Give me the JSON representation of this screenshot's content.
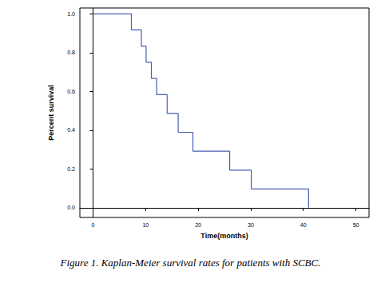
{
  "chart_data": {
    "type": "step",
    "title": "Figure 1. Kaplan-Meier survival rates for patients with SCBC.",
    "x_label": "Time(months)",
    "y_label": "Percent survival",
    "x": [
      0,
      7.3,
      9.2,
      10.1,
      11.1,
      12.1,
      14.1,
      16.2,
      19,
      26,
      30.1,
      41
    ],
    "values": [
      1.0,
      0.917,
      0.833,
      0.75,
      0.667,
      0.583,
      0.486,
      0.389,
      0.292,
      0.194,
      0.097,
      0.0
    ],
    "censored": {
      "x": [
        12.1
      ],
      "y": [
        0.583
      ]
    },
    "color": "#4a5eb0",
    "xlim": [
      -2.5,
      52.5
    ],
    "xticks": [
      0,
      10,
      20,
      30,
      40,
      50
    ],
    "ylim": [
      -0.05,
      1.03
    ],
    "yticks": [
      {
        "value": 0,
        "label": "0.0"
      },
      0.2,
      0.4,
      0.6,
      0.8,
      {
        "value": 1,
        "label": "1.0"
      }
    ],
    "grid": false
  }
}
